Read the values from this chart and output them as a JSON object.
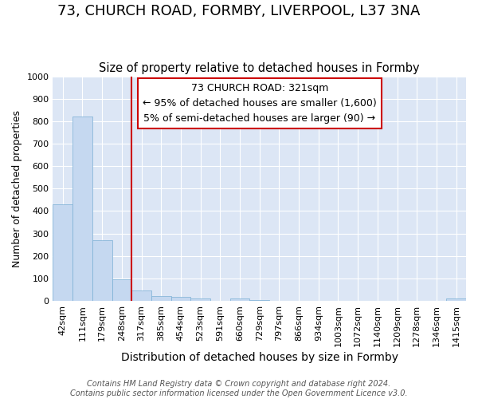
{
  "title": "73, CHURCH ROAD, FORMBY, LIVERPOOL, L37 3NA",
  "subtitle": "Size of property relative to detached houses in Formby",
  "xlabel": "Distribution of detached houses by size in Formby",
  "ylabel": "Number of detached properties",
  "categories": [
    "42sqm",
    "111sqm",
    "179sqm",
    "248sqm",
    "317sqm",
    "385sqm",
    "454sqm",
    "523sqm",
    "591sqm",
    "660sqm",
    "729sqm",
    "797sqm",
    "866sqm",
    "934sqm",
    "1003sqm",
    "1072sqm",
    "1140sqm",
    "1209sqm",
    "1278sqm",
    "1346sqm",
    "1415sqm"
  ],
  "bar_values": [
    430,
    820,
    270,
    95,
    45,
    22,
    17,
    10,
    0,
    10,
    5,
    0,
    0,
    0,
    0,
    0,
    0,
    0,
    0,
    0,
    10
  ],
  "bar_color": "#c5d8f0",
  "bar_edge_color": "#7bafd4",
  "red_line_x": 3.5,
  "red_line_color": "#cc0000",
  "annotation_text": "73 CHURCH ROAD: 321sqm\n← 95% of detached houses are smaller (1,600)\n5% of semi-detached houses are larger (90) →",
  "annotation_box_color": "#ffffff",
  "annotation_box_edge_color": "#cc0000",
  "ylim": [
    0,
    1000
  ],
  "plot_bg_color": "#dce6f5",
  "fig_bg_color": "#ffffff",
  "grid_color": "#ffffff",
  "footer_text": "Contains HM Land Registry data © Crown copyright and database right 2024.\nContains public sector information licensed under the Open Government Licence v3.0.",
  "title_fontsize": 13,
  "subtitle_fontsize": 10.5,
  "xlabel_fontsize": 10,
  "ylabel_fontsize": 9,
  "tick_fontsize": 8,
  "annotation_fontsize": 9,
  "footer_fontsize": 7
}
